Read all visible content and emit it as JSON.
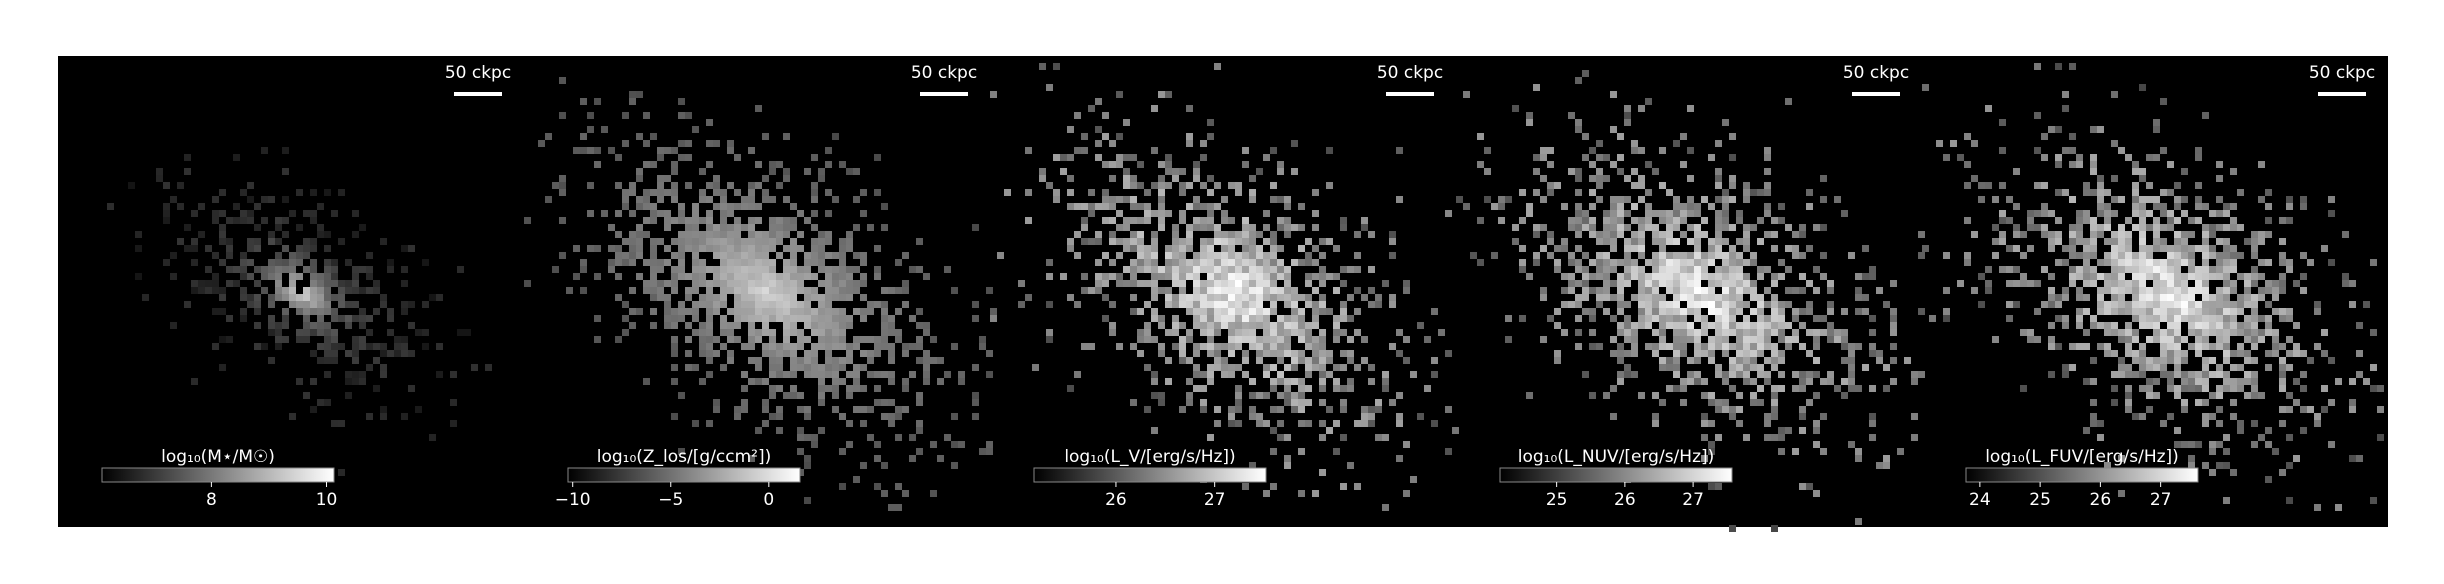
{
  "chart_data": [
    {
      "type": "image",
      "colormap": "gray",
      "colorbar_label": "log₁₀(M⋆/M☉)",
      "clim": [
        6.1,
        10.13
      ],
      "ticks": [
        8,
        10
      ],
      "scale_bar_label": "50 ckpc"
    },
    {
      "type": "image",
      "colormap": "gray",
      "colorbar_label": "log₁₀(Z_los/[g/ccm²])",
      "clim": [
        -10.24,
        1.59
      ],
      "ticks": [
        {
          "value": -10,
          "label": "−10"
        },
        {
          "value": -5,
          "label": "−5"
        },
        0
      ],
      "scale_bar_label": "50 ckpc"
    },
    {
      "type": "image",
      "colormap": "gray",
      "colorbar_label": "log₁₀(L_V/[erg/s/Hz])",
      "clim": [
        25.17,
        27.52
      ],
      "ticks": [
        26,
        27
      ],
      "scale_bar_label": "50 ckpc"
    },
    {
      "type": "image",
      "colormap": "gray",
      "colorbar_label": "log₁₀(L_NUV/[erg/s/Hz])",
      "clim": [
        24.17,
        27.57
      ],
      "ticks": [
        25,
        26,
        27
      ],
      "scale_bar_label": "50 ckpc"
    },
    {
      "type": "image",
      "colormap": "gray",
      "colorbar_label": "log₁₀(L_FUV/[erg/s/Hz])",
      "clim": [
        23.77,
        27.62
      ],
      "ticks": [
        24,
        25,
        26,
        27
      ],
      "scale_bar_label": "50 ckpc"
    }
  ]
}
